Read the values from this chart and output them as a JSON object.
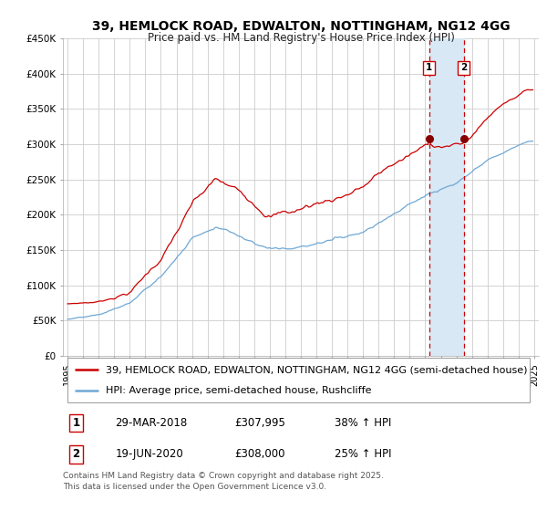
{
  "title": "39, HEMLOCK ROAD, EDWALTON, NOTTINGHAM, NG12 4GG",
  "subtitle": "Price paid vs. HM Land Registry's House Price Index (HPI)",
  "red_label": "39, HEMLOCK ROAD, EDWALTON, NOTTINGHAM, NG12 4GG (semi-detached house)",
  "blue_label": "HPI: Average price, semi-detached house, Rushcliffe",
  "annotation1": [
    "1",
    "29-MAR-2018",
    "£307,995",
    "38% ↑ HPI"
  ],
  "annotation2": [
    "2",
    "19-JUN-2020",
    "£308,000",
    "25% ↑ HPI"
  ],
  "footer": "Contains HM Land Registry data © Crown copyright and database right 2025.\nThis data is licensed under the Open Government Licence v3.0.",
  "vline1_year": 2018.24,
  "vline2_year": 2020.47,
  "ylim": [
    0,
    450000
  ],
  "yticks": [
    0,
    50000,
    100000,
    150000,
    200000,
    250000,
    300000,
    350000,
    400000,
    450000
  ],
  "ytick_labels": [
    "£0",
    "£50K",
    "£100K",
    "£150K",
    "£200K",
    "£250K",
    "£300K",
    "£350K",
    "£400K",
    "£450K"
  ],
  "red_color": "#cc0000",
  "blue_color": "#6fa8d5",
  "marker_color": "#880000",
  "shade_color": "#d8e8f5",
  "background_color": "#ffffff",
  "grid_color": "#cccccc",
  "title_fontsize": 10,
  "subtitle_fontsize": 8.5,
  "tick_fontsize": 7.5,
  "legend_fontsize": 8,
  "annotation_fontsize": 8.5,
  "footer_fontsize": 6.5
}
